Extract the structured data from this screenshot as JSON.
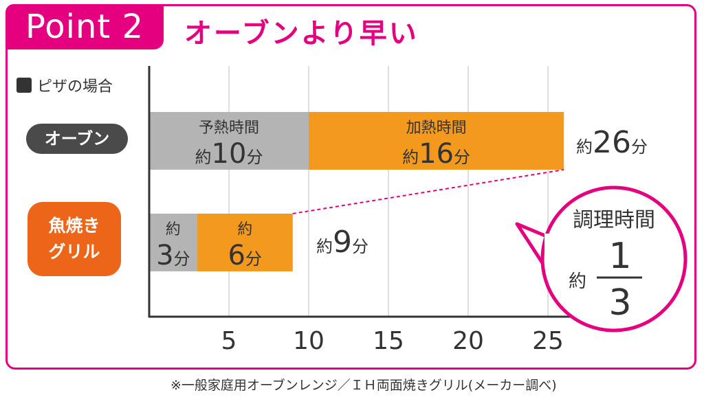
{
  "point_label": "Point 2",
  "headline": "オーブンより早い",
  "legend_label": "ピザの場合",
  "footnote": "※一般家庭用オーブンレンジ／ＩＨ両面焼きグリル(メーカー調べ)",
  "callout": {
    "title": "調理時間",
    "prefix": "約",
    "numerator": "1",
    "denominator": "3"
  },
  "colors": {
    "accent": "#e4007f",
    "preheat": "#b4b4b4",
    "heat": "#f39a1e",
    "oven_label": "#4a4a4a",
    "grill_label": "#ec6519"
  },
  "chart_data": {
    "type": "bar",
    "orientation": "horizontal",
    "stacked": true,
    "categories": [
      "オーブン",
      "魚焼き\nグリル"
    ],
    "series": [
      {
        "name": "予熱時間",
        "values": [
          10,
          3
        ]
      },
      {
        "name": "加熱時間",
        "values": [
          16,
          6
        ]
      }
    ],
    "segment_labels": [
      [
        {
          "top": "予熱時間",
          "prefix": "約",
          "num": "10",
          "unit": "分"
        },
        {
          "top": "加熱時間",
          "prefix": "約",
          "num": "16",
          "unit": "分"
        }
      ],
      [
        {
          "top": "約",
          "prefix": "",
          "num": "3",
          "unit": "分"
        },
        {
          "top": "約",
          "prefix": "",
          "num": "6",
          "unit": "分"
        }
      ]
    ],
    "totals": [
      {
        "prefix": "約",
        "num": "26",
        "unit": "分"
      },
      {
        "prefix": "約",
        "num": "9",
        "unit": "分"
      }
    ],
    "xticks": [
      5,
      10,
      15,
      20,
      25
    ],
    "xlim": [
      0,
      26
    ],
    "grid": true
  }
}
